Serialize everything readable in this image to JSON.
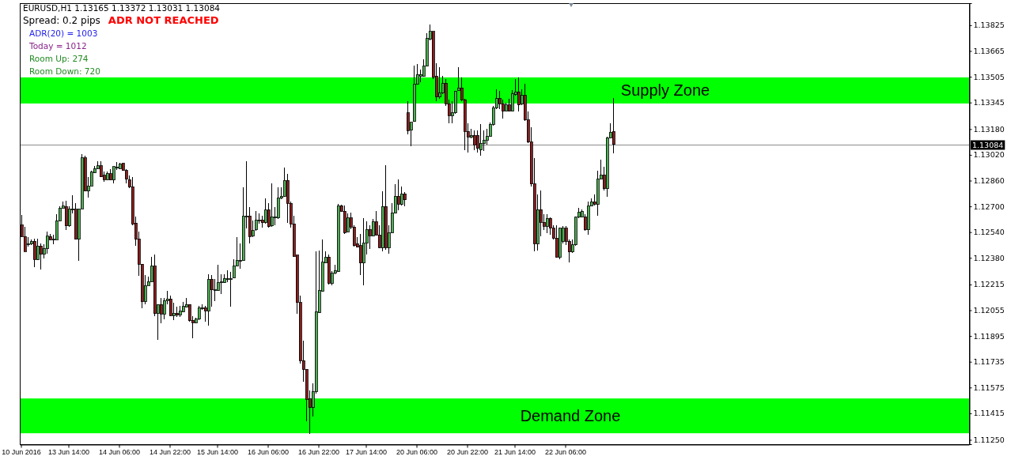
{
  "chart_data": {
    "type": "candlestick",
    "title": "EURUSD,H1 1.13165 1.13372 1.13031 1.13084",
    "annotations": [
      "Spread: 0.2 pips",
      "ADR NOT REACHED",
      "ADR(20) = 1003",
      "Today = 1012",
      "Room Up: 274",
      "Room Down: 720"
    ],
    "categories": [
      "10 Jun 2016",
      null,
      null,
      null,
      null,
      null,
      null,
      null,
      null,
      null,
      null,
      null,
      null,
      null,
      null,
      "13 Jun 14:00",
      null,
      null,
      null,
      null,
      null,
      null,
      null,
      null,
      null,
      null,
      null,
      null,
      null,
      null,
      null,
      "14 Jun 06:00",
      null,
      null,
      null,
      null,
      null,
      null,
      null,
      null,
      null,
      null,
      null,
      null,
      null,
      null,
      null,
      "14 Jun 22:00",
      null,
      null,
      null,
      null,
      null,
      null,
      null,
      null,
      null,
      null,
      null,
      null,
      null,
      null,
      "15 Jun 14:00",
      null,
      null,
      null,
      null,
      null,
      null,
      null,
      null,
      null,
      null,
      null,
      null,
      null,
      null,
      null,
      "16 Jun 06:00",
      null,
      null,
      null,
      null,
      null,
      null,
      null,
      null,
      null,
      null,
      null,
      null,
      null,
      null,
      null,
      "16 Jun 22:00",
      null,
      null,
      null,
      null,
      null,
      null,
      null,
      null,
      null,
      null,
      null,
      null,
      null,
      null,
      "17 Jun 14:00",
      null,
      null,
      null,
      null,
      null,
      null,
      null,
      null,
      null,
      null,
      null,
      null,
      null,
      null,
      null,
      "20 Jun 06:00",
      null,
      null,
      null,
      null,
      null,
      null,
      null,
      null,
      null,
      null,
      null,
      null,
      null,
      null,
      null,
      "20 Jun 22:00",
      null,
      null,
      null,
      null,
      null,
      null,
      null,
      null,
      null,
      null,
      null,
      null,
      null,
      null,
      "21 Jun 14:00",
      null,
      null,
      null,
      null,
      null,
      null,
      null,
      null,
      null,
      null,
      null,
      null,
      null,
      null,
      null,
      "22 Jun 06:00",
      null,
      null,
      null,
      null,
      null,
      null,
      null,
      null,
      null,
      null,
      null,
      null,
      null,
      null,
      null,
      null,
      null,
      null,
      null,
      null,
      null,
      null,
      null,
      null,
      null,
      null,
      null,
      null,
      null,
      null,
      null,
      null,
      null,
      null,
      null,
      null,
      null,
      null,
      null,
      null,
      null,
      null,
      null,
      null,
      null,
      null,
      null,
      null,
      null,
      null,
      null,
      null,
      null,
      null,
      null,
      null,
      null,
      null,
      null,
      null,
      null,
      null,
      null,
      null,
      null,
      null,
      null,
      null,
      null,
      null,
      null,
      null,
      null,
      null,
      null,
      null,
      null,
      null,
      null,
      null,
      null,
      null,
      null,
      null,
      null,
      null,
      null,
      null,
      null,
      null,
      null,
      null,
      null,
      null,
      null,
      null,
      null,
      null,
      null,
      null,
      null,
      null,
      null,
      null,
      null,
      null,
      null,
      null,
      null,
      null,
      null,
      null,
      null,
      null,
      null,
      null,
      null,
      null,
      null,
      null,
      null,
      null,
      null,
      null,
      null,
      null,
      null
    ],
    "ohlc": [
      [
        1.12583,
        1.12645,
        1.12509,
        1.12512
      ],
      [
        1.12512,
        1.12574,
        1.12419,
        1.12419
      ],
      [
        1.12468,
        1.12509,
        1.12452,
        1.12468
      ],
      [
        1.12468,
        1.12492,
        1.1246,
        1.12481
      ],
      [
        1.12484,
        1.12497,
        1.12324,
        1.1237
      ],
      [
        1.1237,
        1.12501,
        1.12366,
        1.12455
      ],
      [
        1.12455,
        1.12471,
        1.12308,
        1.12402
      ],
      [
        1.12402,
        1.12465,
        1.12378,
        1.12438
      ],
      [
        1.12438,
        1.12542,
        1.12406,
        1.12514
      ],
      [
        1.12512,
        1.12529,
        1.12488,
        1.12492
      ],
      [
        1.12496,
        1.12525,
        1.12465,
        1.12496
      ],
      [
        1.12492,
        1.12651,
        1.12492,
        1.1261
      ],
      [
        1.1261,
        1.127,
        1.12607,
        1.12689
      ],
      [
        1.12689,
        1.1273,
        1.12686,
        1.12702
      ],
      [
        1.127,
        1.12733,
        1.12553,
        1.12579
      ],
      [
        1.12579,
        1.127,
        1.12574,
        1.12684
      ],
      [
        1.12684,
        1.12771,
        1.12656,
        1.12684
      ],
      [
        1.12681,
        1.12722,
        1.12492,
        1.12496
      ],
      [
        1.12496,
        1.12684,
        1.12362,
        1.12684
      ],
      [
        1.12684,
        1.13025,
        1.12684,
        1.13
      ],
      [
        1.13,
        1.13016,
        1.12792,
        1.12795
      ],
      [
        1.12795,
        1.1288,
        1.12754,
        1.12828
      ],
      [
        1.12828,
        1.12923,
        1.12828,
        1.12913
      ],
      [
        1.1291,
        1.12951,
        1.12907,
        1.12936
      ],
      [
        1.12936,
        1.12979,
        1.12933,
        1.12952
      ],
      [
        1.12952,
        1.12979,
        1.1288,
        1.12884
      ],
      [
        1.12892,
        1.12918,
        1.12853,
        1.12867
      ],
      [
        1.12867,
        1.12916,
        1.12861,
        1.12902
      ],
      [
        1.12902,
        1.12933,
        1.12861,
        1.12864
      ],
      [
        1.12864,
        1.12946,
        1.12841,
        1.12946
      ],
      [
        1.12943,
        1.12975,
        1.12926,
        1.12943
      ],
      [
        1.12936,
        1.12972,
        1.12931,
        1.12964
      ],
      [
        1.12966,
        1.12972,
        1.1292,
        1.12923
      ],
      [
        1.12923,
        1.12933,
        1.12841,
        1.12869
      ],
      [
        1.12867,
        1.12894,
        1.12812,
        1.12823
      ],
      [
        1.12823,
        1.12884,
        1.12583,
        1.12591
      ],
      [
        1.12596,
        1.12635,
        1.12455,
        1.12496
      ],
      [
        1.12497,
        1.12545,
        1.12268,
        1.1234
      ],
      [
        1.1234,
        1.1234,
        1.12067,
        1.12108
      ],
      [
        1.12111,
        1.12272,
        1.12091,
        1.12209
      ],
      [
        1.12209,
        1.12263,
        1.12209,
        1.12234
      ],
      [
        1.12231,
        1.12386,
        1.12231,
        1.12329
      ],
      [
        1.12329,
        1.12402,
        1.12018,
        1.12033
      ],
      [
        1.12033,
        1.12091,
        1.1187,
        1.12091
      ],
      [
        1.12091,
        1.12132,
        1.11974,
        1.12031
      ],
      [
        1.12031,
        1.12132,
        1.12001,
        1.12116
      ],
      [
        1.12114,
        1.12177,
        1.12091,
        1.12124
      ],
      [
        1.12124,
        1.12144,
        1.12018,
        1.12021
      ],
      [
        1.12021,
        1.12103,
        1.11993,
        1.12037
      ],
      [
        1.12037,
        1.12075,
        1.12013,
        1.12024
      ],
      [
        1.12026,
        1.12083,
        1.12013,
        1.12049
      ],
      [
        1.12046,
        1.12108,
        1.12042,
        1.12078
      ],
      [
        1.12075,
        1.12129,
        1.12072,
        1.12091
      ],
      [
        1.12091,
        1.12091,
        1.11985,
        1.1199
      ],
      [
        1.11993,
        1.12018,
        1.1188,
        1.11977
      ],
      [
        1.11977,
        1.1201,
        1.11974,
        1.12001
      ],
      [
        1.12001,
        1.12083,
        1.11996,
        1.1207
      ],
      [
        1.1207,
        1.12091,
        1.12059,
        1.1207
      ],
      [
        1.12072,
        1.12083,
        1.11985,
        1.12051
      ],
      [
        1.12051,
        1.1228,
        1.1196,
        1.12247
      ],
      [
        1.12247,
        1.12272,
        1.12075,
        1.12181
      ],
      [
        1.12181,
        1.12247,
        1.12111,
        1.12181
      ],
      [
        1.12177,
        1.12337,
        1.12177,
        1.12227
      ],
      [
        1.12231,
        1.1228,
        1.12157,
        1.12231
      ],
      [
        1.12227,
        1.1228,
        1.12222,
        1.12252
      ],
      [
        1.1225,
        1.12304,
        1.12231,
        1.1225
      ],
      [
        1.1225,
        1.12293,
        1.12075,
        1.1225
      ],
      [
        1.12255,
        1.1237,
        1.12255,
        1.12332
      ],
      [
        1.12332,
        1.12509,
        1.12329,
        1.12365
      ],
      [
        1.12365,
        1.12468,
        1.12312,
        1.12365
      ],
      [
        1.12362,
        1.1282,
        1.12362,
        1.1264
      ],
      [
        1.1264,
        1.1298,
        1.12561,
        1.1264
      ],
      [
        1.1264,
        1.12697,
        1.12468,
        1.12512
      ],
      [
        1.12517,
        1.1261,
        1.12509,
        1.1255
      ],
      [
        1.12558,
        1.12669,
        1.1255,
        1.12615
      ],
      [
        1.12615,
        1.12656,
        1.12591,
        1.12615
      ],
      [
        1.12615,
        1.1264,
        1.12566,
        1.12599
      ],
      [
        1.12599,
        1.1275,
        1.12591,
        1.12676
      ],
      [
        1.12676,
        1.12722,
        1.12566,
        1.12574
      ],
      [
        1.12578,
        1.12841,
        1.12571,
        1.12635
      ],
      [
        1.12635,
        1.12697,
        1.12583,
        1.12635
      ],
      [
        1.12628,
        1.1282,
        1.12624,
        1.12754
      ],
      [
        1.12751,
        1.1282,
        1.12746,
        1.12763
      ],
      [
        1.12763,
        1.12939,
        1.12758,
        1.12861
      ],
      [
        1.12861,
        1.12902,
        1.12599,
        1.12718
      ],
      [
        1.12718,
        1.1273,
        1.12569,
        1.12591
      ],
      [
        1.12591,
        1.1264,
        1.12386,
        1.12391
      ],
      [
        1.12398,
        1.12398,
        1.12031,
        1.12103
      ],
      [
        1.12103,
        1.12144,
        1.11723,
        1.11743
      ],
      [
        1.11743,
        1.11867,
        1.11609,
        1.11687
      ],
      [
        1.11687,
        1.1169,
        1.11363,
        1.11502
      ],
      [
        1.11505,
        1.11559,
        1.11289,
        1.1145
      ],
      [
        1.11453,
        1.116,
        1.11396,
        1.11551
      ],
      [
        1.11551,
        1.12419,
        1.11535,
        1.12047
      ],
      [
        1.12042,
        1.12427,
        1.12037,
        1.12178
      ],
      [
        1.12173,
        1.12496,
        1.12168,
        1.12353
      ],
      [
        1.12348,
        1.12419,
        1.12345,
        1.12386
      ],
      [
        1.12386,
        1.12402,
        1.12214,
        1.12222
      ],
      [
        1.12222,
        1.12296,
        1.12211,
        1.12288
      ],
      [
        1.12288,
        1.12337,
        1.1228,
        1.12301
      ],
      [
        1.12296,
        1.12714,
        1.12293,
        1.12705
      ],
      [
        1.12705,
        1.12709,
        1.12664,
        1.12669
      ],
      [
        1.12669,
        1.12705,
        1.12529,
        1.12538
      ],
      [
        1.12542,
        1.12656,
        1.12538,
        1.12627
      ],
      [
        1.12627,
        1.12659,
        1.12558,
        1.12571
      ],
      [
        1.12571,
        1.12583,
        1.12452,
        1.12457
      ],
      [
        1.12468,
        1.12509,
        1.12443,
        1.12447
      ],
      [
        1.12457,
        1.12529,
        1.12271,
        1.12348
      ],
      [
        1.12348,
        1.12627,
        1.12211,
        1.12473
      ],
      [
        1.12473,
        1.12607,
        1.12402,
        1.12558
      ],
      [
        1.12558,
        1.12583,
        1.12435,
        1.12517
      ],
      [
        1.12517,
        1.1262,
        1.12512,
        1.12604
      ],
      [
        1.12604,
        1.12669,
        1.12517,
        1.12522
      ],
      [
        1.12522,
        1.12583,
        1.1244,
        1.12443
      ],
      [
        1.12443,
        1.12795,
        1.12419,
        1.127
      ],
      [
        1.127,
        1.12954,
        1.1243,
        1.12443
      ],
      [
        1.12443,
        1.12583,
        1.12407,
        1.12537
      ],
      [
        1.12537,
        1.12722,
        1.12533,
        1.12661
      ],
      [
        1.12661,
        1.1284,
        1.12656,
        1.12763
      ],
      [
        1.12763,
        1.12866,
        1.12676,
        1.12714
      ],
      [
        1.12714,
        1.12823,
        1.12705,
        1.12779
      ],
      [
        1.12779,
        1.1279,
        1.12702,
        1.12741
      ],
      [
        1.1328,
        1.13353,
        1.13149,
        1.1317
      ],
      [
        1.13173,
        1.13222,
        1.13075,
        1.13222
      ],
      [
        1.13226,
        1.13574,
        1.13226,
        1.1346
      ],
      [
        1.1346,
        1.13583,
        1.13455,
        1.1352
      ],
      [
        1.13509,
        1.1355,
        1.13471,
        1.1352
      ],
      [
        1.13509,
        1.13615,
        1.13504,
        1.13574
      ],
      [
        1.13574,
        1.13776,
        1.1357,
        1.13743
      ],
      [
        1.13738,
        1.13828,
        1.1373,
        1.13787
      ],
      [
        1.13787,
        1.13787,
        1.13493,
        1.13501
      ],
      [
        1.13509,
        1.13591,
        1.13353,
        1.13378
      ],
      [
        1.13378,
        1.13563,
        1.1337,
        1.13403
      ],
      [
        1.13403,
        1.13509,
        1.13399,
        1.13465
      ],
      [
        1.13465,
        1.13493,
        1.13324,
        1.13337
      ],
      [
        1.13337,
        1.13362,
        1.13214,
        1.13263
      ],
      [
        1.13263,
        1.13353,
        1.13214,
        1.1328
      ],
      [
        1.1328,
        1.13419,
        1.13275,
        1.13416
      ],
      [
        1.13419,
        1.13566,
        1.13416,
        1.13435
      ],
      [
        1.13435,
        1.13501,
        1.13353,
        1.13362
      ],
      [
        1.13362,
        1.1337,
        1.13051,
        1.13165
      ],
      [
        1.13165,
        1.13214,
        1.13034,
        1.13132
      ],
      [
        1.13132,
        1.13181,
        1.13124,
        1.13141
      ],
      [
        1.13141,
        1.13173,
        1.13051,
        1.13083
      ],
      [
        1.13141,
        1.13173,
        1.13034,
        1.13059
      ],
      [
        1.13051,
        1.13209,
        1.13013,
        1.13091
      ],
      [
        1.13091,
        1.13173,
        1.13042,
        1.13111
      ],
      [
        1.13111,
        1.13181,
        1.13083,
        1.13137
      ],
      [
        1.13137,
        1.13222,
        1.13132,
        1.13209
      ],
      [
        1.13209,
        1.13324,
        1.13203,
        1.13312
      ],
      [
        1.13312,
        1.13427,
        1.13304,
        1.1337
      ],
      [
        1.1337,
        1.13419,
        1.13304,
        1.13337
      ],
      [
        1.13337,
        1.13362,
        1.13247,
        1.13291
      ],
      [
        1.13291,
        1.13345,
        1.13288,
        1.13329
      ],
      [
        1.13329,
        1.1337,
        1.13288,
        1.13291
      ],
      [
        1.13291,
        1.13422,
        1.13288,
        1.13399
      ],
      [
        1.13394,
        1.13493,
        1.13386,
        1.13411
      ],
      [
        1.13411,
        1.13501,
        1.13288,
        1.13329
      ],
      [
        1.13334,
        1.13427,
        1.13329,
        1.13389
      ],
      [
        1.13389,
        1.1346,
        1.13231,
        1.13236
      ],
      [
        1.13236,
        1.13291,
        1.13095,
        1.131
      ],
      [
        1.131,
        1.1319,
        1.12821,
        1.12838
      ],
      [
        1.12838,
        1.13001,
        1.1242,
        1.12469
      ],
      [
        1.12469,
        1.12772,
        1.12428,
        1.12679
      ],
      [
        1.12679,
        1.12797,
        1.12515,
        1.126
      ],
      [
        1.126,
        1.1265,
        1.12551,
        1.12576
      ],
      [
        1.12576,
        1.1265,
        1.12535,
        1.12625
      ],
      [
        1.12625,
        1.12633,
        1.12522,
        1.12564
      ],
      [
        1.12564,
        1.12584,
        1.12494,
        1.12502
      ],
      [
        1.12502,
        1.12584,
        1.12379,
        1.12384
      ],
      [
        1.12384,
        1.12568,
        1.12371,
        1.12564
      ],
      [
        1.12483,
        1.12576,
        1.12469,
        1.12564
      ],
      [
        1.12564,
        1.12576,
        1.12461,
        1.12483
      ],
      [
        1.12483,
        1.12492,
        1.12352,
        1.12417
      ],
      [
        1.12417,
        1.12494,
        1.12412,
        1.12461
      ],
      [
        1.12461,
        1.12636,
        1.12456,
        1.12633
      ],
      [
        1.12633,
        1.1269,
        1.12625,
        1.12666
      ],
      [
        1.12633,
        1.12679,
        1.1263,
        1.12669
      ],
      [
        1.12636,
        1.1265,
        1.12548,
        1.12555
      ],
      [
        1.12555,
        1.12731,
        1.12522,
        1.12702
      ],
      [
        1.12702,
        1.12751,
        1.12699,
        1.12728
      ],
      [
        1.12728,
        1.12772,
        1.12707,
        1.12715
      ],
      [
        1.12715,
        1.1292,
        1.12641,
        1.12871
      ],
      [
        1.12871,
        1.1299,
        1.12866,
        1.12895
      ],
      [
        1.12895,
        1.12944,
        1.12797,
        1.1281
      ],
      [
        1.1281,
        1.13132,
        1.12761,
        1.13127
      ],
      [
        1.13127,
        1.13214,
        1.13124,
        1.1316
      ],
      [
        1.13165,
        1.13372,
        1.13031,
        1.13084
      ],
      null,
      null,
      null,
      null,
      null,
      null,
      null,
      null,
      null,
      null,
      null,
      null,
      null,
      null,
      null,
      null,
      null,
      null,
      null,
      null,
      null,
      null,
      null,
      null,
      null,
      null,
      null,
      null,
      null,
      null,
      null,
      null,
      null,
      null,
      null,
      null,
      null,
      null,
      null,
      null,
      null,
      null,
      null,
      null,
      null,
      null,
      null,
      null,
      null,
      null,
      null,
      null,
      null,
      null,
      null,
      null,
      null,
      null,
      null,
      null,
      null,
      null,
      null,
      null,
      null,
      null,
      null,
      null,
      null,
      null,
      null,
      null,
      null,
      null,
      null,
      null,
      null,
      null,
      null,
      null,
      null,
      null,
      null,
      null,
      null,
      null,
      null,
      null,
      null,
      null,
      null,
      null,
      null,
      null,
      null,
      null,
      null,
      null,
      null,
      null,
      null,
      null,
      null,
      null,
      null,
      null,
      null,
      null,
      null,
      null,
      null,
      null
    ],
    "colors": [
      "#8b1e1e",
      "#8b1e1e",
      "#4caf50",
      "#4caf50",
      "#8b1e1e",
      "#4caf50",
      "#8b1e1e",
      "#4caf50",
      "#4caf50",
      "#8b1e1e",
      "#4caf50",
      "#4caf50",
      "#4caf50",
      "#4caf50",
      "#8b1e1e",
      "#4caf50",
      "#4caf50",
      "#8b1e1e",
      "#4caf50",
      "#4caf50",
      "#8b1e1e",
      "#4caf50",
      "#4caf50",
      "#4caf50",
      "#4caf50",
      "#8b1e1e",
      "#8b1e1e",
      "#4caf50",
      "#8b1e1e",
      "#4caf50",
      "#4caf50",
      "#4caf50",
      "#8b1e1e",
      "#8b1e1e",
      "#8b1e1e",
      "#8b1e1e",
      "#8b1e1e",
      "#8b1e1e",
      "#8b1e1e",
      "#4caf50",
      "#4caf50",
      "#4caf50",
      "#8b1e1e",
      "#4caf50",
      "#8b1e1e",
      "#4caf50",
      "#4caf50",
      "#8b1e1e",
      "#4caf50",
      "#8b1e1e",
      "#4caf50",
      "#4caf50",
      "#4caf50",
      "#8b1e1e",
      "#8b1e1e",
      "#4caf50",
      "#4caf50",
      "#4caf50",
      "#8b1e1e",
      "#4caf50",
      "#8b1e1e",
      "#4caf50",
      "#4caf50",
      "#4caf50",
      "#4caf50",
      "#4caf50",
      "#4caf50",
      "#4caf50",
      "#4caf50",
      "#4caf50",
      "#4caf50",
      "#4caf50",
      "#8b1e1e",
      "#4caf50",
      "#4caf50",
      "#4caf50",
      "#8b1e1e",
      "#4caf50",
      "#8b1e1e",
      "#4caf50",
      "#4caf50",
      "#4caf50",
      "#4caf50",
      "#4caf50",
      "#8b1e1e",
      "#8b1e1e",
      "#8b1e1e",
      "#8b1e1e",
      "#8b1e1e",
      "#8b1e1e",
      "#8b1e1e",
      "#8b1e1e",
      "#4caf50",
      "#4caf50",
      "#4caf50",
      "#4caf50",
      "#4caf50",
      "#8b1e1e",
      "#4caf50",
      "#4caf50",
      "#4caf50",
      "#8b1e1e",
      "#8b1e1e",
      "#4caf50",
      "#8b1e1e",
      "#8b1e1e",
      "#8b1e1e",
      "#8b1e1e",
      "#4caf50",
      "#4caf50",
      "#8b1e1e",
      "#4caf50",
      "#8b1e1e",
      "#8b1e1e",
      "#4caf50",
      "#8b1e1e",
      "#4caf50",
      "#4caf50",
      "#4caf50",
      "#8b1e1e",
      "#4caf50",
      "#8b1e1e",
      "#8b1e1e",
      "#4caf50",
      "#4caf50",
      "#4caf50",
      "#4caf50",
      "#4caf50",
      "#4caf50",
      "#4caf50",
      "#8b1e1e",
      "#8b1e1e",
      "#4caf50",
      "#4caf50",
      "#8b1e1e",
      "#8b1e1e",
      "#4caf50",
      "#4caf50",
      "#4caf50",
      "#8b1e1e",
      "#8b1e1e",
      "#8b1e1e",
      "#4caf50",
      "#8b1e1e",
      "#8b1e1e",
      "#4caf50",
      "#4caf50",
      "#4caf50",
      "#4caf50",
      "#4caf50",
      "#4caf50",
      "#8b1e1e",
      "#8b1e1e",
      "#4caf50",
      "#8b1e1e",
      "#4caf50",
      "#4caf50",
      "#8b1e1e",
      "#4caf50",
      "#8b1e1e",
      "#8b1e1e",
      "#8b1e1e",
      "#8b1e1e",
      "#4caf50",
      "#8b1e1e",
      "#8b1e1e",
      "#4caf50",
      "#8b1e1e",
      "#8b1e1e",
      "#8b1e1e",
      "#4caf50",
      "#4caf50",
      "#8b1e1e",
      "#8b1e1e",
      "#4caf50",
      "#4caf50",
      "#4caf50",
      "#4caf50",
      "#8b1e1e",
      "#4caf50",
      "#4caf50",
      "#8b1e1e",
      "#4caf50",
      "#4caf50",
      "#8b1e1e",
      "#4caf50",
      "#4caf50",
      "#8b1e1e",
      null,
      null,
      null,
      null,
      null,
      null,
      null,
      null,
      null,
      null,
      null,
      null,
      null,
      null,
      null,
      null,
      null,
      null,
      null,
      null,
      null,
      null,
      null,
      null,
      null,
      null,
      null,
      null,
      null,
      null,
      null,
      null,
      null,
      null,
      null,
      null,
      null,
      null,
      null,
      null,
      null,
      null,
      null,
      null,
      null,
      null,
      null,
      null,
      null,
      null,
      null,
      null,
      null,
      null,
      null,
      null,
      null,
      null,
      null,
      null,
      null,
      null,
      null,
      null,
      null,
      null,
      null,
      null,
      null,
      null,
      null,
      null,
      null,
      null,
      null,
      null,
      null,
      null,
      null,
      null,
      null,
      null,
      null,
      null,
      null,
      null,
      null,
      null,
      null,
      null,
      null,
      null,
      null,
      null,
      null,
      null,
      null,
      null,
      null,
      null,
      null,
      null,
      null,
      null,
      null,
      null,
      null,
      null,
      null,
      null,
      null,
      null
    ],
    "ylim": [
      1.11223,
      1.13962
    ],
    "yticks": [
      1.13825,
      1.13665,
      1.13505,
      1.13345,
      {
        "value": 1.1318,
        "label": "1.13180"
      },
      {
        "value": 1.1302,
        "label": "1.13020"
      },
      {
        "value": 1.1286,
        "label": "1.12860"
      },
      {
        "value": 1.127,
        "label": "1.12700"
      },
      {
        "value": 1.1254,
        "label": "1.12540"
      },
      {
        "value": 1.1238,
        "label": "1.12380"
      },
      1.12215,
      1.12055,
      1.11895,
      1.11735,
      1.11575,
      1.11415,
      {
        "value": 1.1125,
        "label": "1.11250"
      }
    ],
    "bands": [
      {
        "axis": "y",
        "from": 1.13339,
        "to": 1.13501,
        "label": "Supply Zone",
        "color": "#00ff00"
      },
      {
        "axis": "y",
        "from": 1.11291,
        "to": 1.11507,
        "label": "Demand Zone",
        "color": "#00ff00"
      }
    ],
    "ref_lines": [
      {
        "axis": "y",
        "value": 1.13084,
        "label": "1.13084",
        "color": "#8c8c8c"
      }
    ]
  }
}
